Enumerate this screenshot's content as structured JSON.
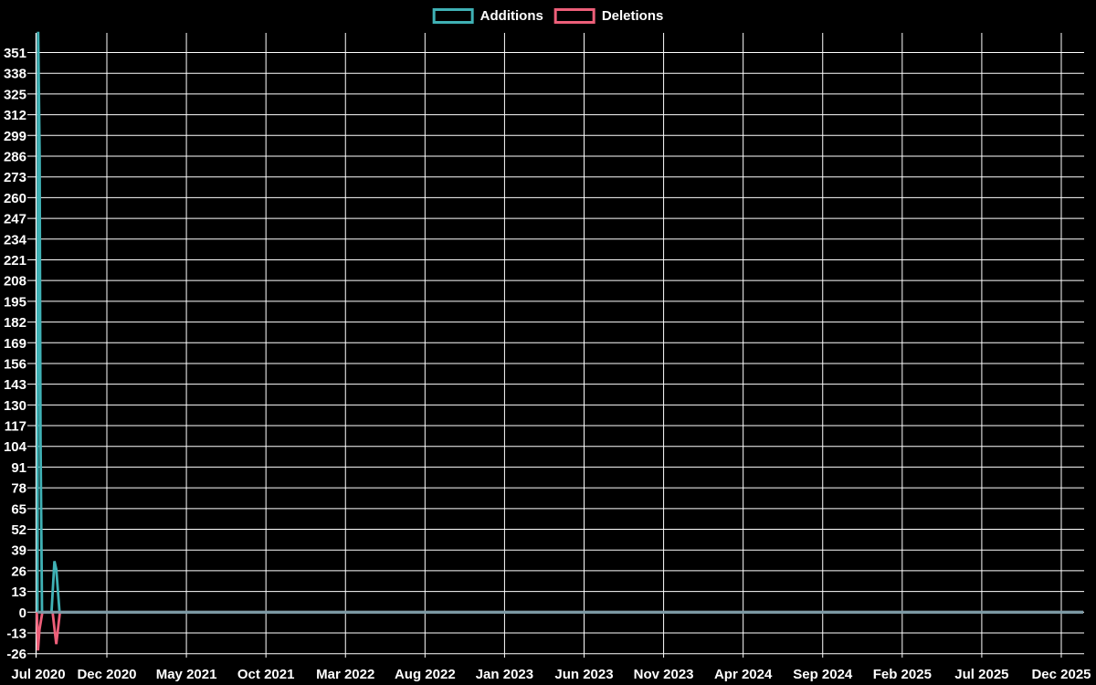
{
  "chart_data": {
    "type": "line",
    "title": "",
    "legend_position": "top-center",
    "grid": true,
    "background_color": "#000000",
    "grid_color": "#ffffff",
    "text_color": "#ffffff",
    "zero_line_color": "#7e9ba6",
    "x_tick_labels": [
      "Jul 2020",
      "Dec 2020",
      "May 2021",
      "Oct 2021",
      "Mar 2022",
      "Aug 2022",
      "Jan 2023",
      "Jun 2023",
      "Nov 2023",
      "Apr 2024",
      "Sep 2024",
      "Feb 2025",
      "Jul 2025",
      "Dec 2025"
    ],
    "y_tick_labels": [
      351,
      338,
      325,
      312,
      299,
      286,
      273,
      260,
      247,
      234,
      221,
      208,
      195,
      182,
      169,
      156,
      143,
      130,
      117,
      104,
      91,
      78,
      65,
      52,
      39,
      26,
      13,
      0,
      -13,
      -26
    ],
    "y_tick_step": 13,
    "ylim": [
      -28.5,
      364
    ],
    "x_range_weeks": [
      0,
      290
    ],
    "series": [
      {
        "name": "Additions",
        "color": "#3fb1b5",
        "peak_value": 364,
        "points_week_value": [
          [
            0.25,
            0
          ],
          [
            0.45,
            364
          ],
          [
            0.85,
            286
          ],
          [
            1.1,
            108
          ],
          [
            1.5,
            0
          ],
          [
            4.1,
            0
          ],
          [
            4.9,
            32
          ],
          [
            5.4,
            27
          ],
          [
            6.3,
            0
          ],
          [
            286.5,
            0
          ]
        ]
      },
      {
        "name": "Deletions",
        "color": "#ed5f79",
        "peak_value": -24,
        "points_week_value": [
          [
            0.1,
            0
          ],
          [
            0.4,
            -24
          ],
          [
            0.8,
            -11
          ],
          [
            1.6,
            0
          ],
          [
            4.4,
            0
          ],
          [
            5.4,
            -20
          ],
          [
            6.4,
            0
          ],
          [
            286.5,
            0
          ]
        ]
      }
    ]
  },
  "legend": {
    "additions_label": "Additions",
    "deletions_label": "Deletions"
  }
}
